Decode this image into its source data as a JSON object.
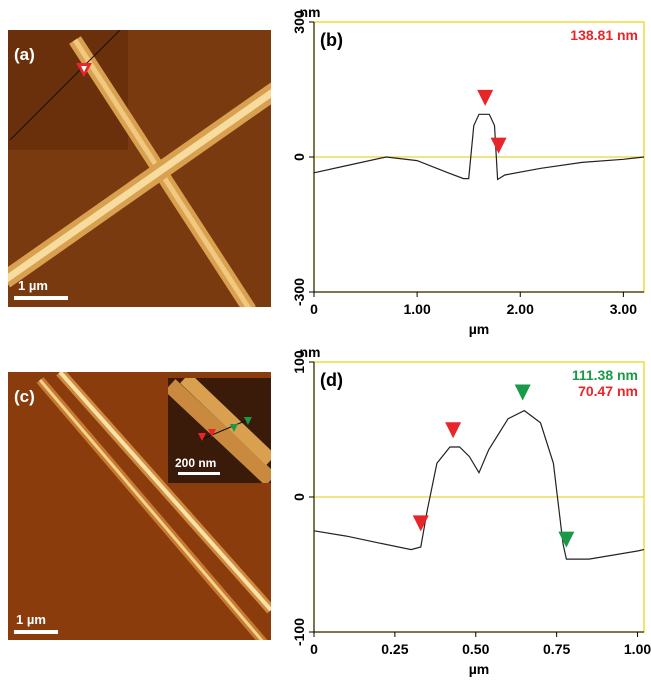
{
  "images": [
    {
      "label": "(a)",
      "scale_bar": "1 µm"
    },
    {
      "label": "(c)",
      "scale_bar": "1 µm",
      "inset_scale_bar": "200 nm"
    }
  ],
  "chart_data": [
    {
      "type": "line",
      "panel_label": "(b)",
      "y_label": "nm",
      "x_label": "µm",
      "annotations": [
        {
          "text": "138.81 nm",
          "color": "#e8262a"
        }
      ],
      "x": [
        0,
        0.3,
        0.7,
        1.0,
        1.3,
        1.45,
        1.5,
        1.55,
        1.6,
        1.7,
        1.75,
        1.78,
        1.85,
        2.2,
        2.6,
        3.0,
        3.2
      ],
      "values": [
        -35,
        -20,
        0,
        -8,
        -35,
        -48,
        -48,
        70,
        95,
        95,
        70,
        -50,
        -40,
        -25,
        -12,
        -5,
        0
      ],
      "color": "#222222",
      "markers": [
        {
          "x": 1.66,
          "y": 118,
          "color": "#e8262a"
        },
        {
          "x": 1.79,
          "y": 12,
          "color": "#e8262a"
        }
      ],
      "xlim": [
        0,
        3.2
      ],
      "ylim": [
        -300,
        300
      ],
      "xticks": [
        0,
        {
          "value": 1,
          "label": "1.00"
        },
        {
          "value": 2,
          "label": "2.00"
        },
        {
          "value": 3,
          "label": "3.00"
        }
      ],
      "yticks": [
        -300,
        0,
        300
      ],
      "zero_line": true
    },
    {
      "type": "line",
      "panel_label": "(d)",
      "y_label": "nm",
      "x_label": "µm",
      "annotations": [
        {
          "text": "111.38 nm",
          "color": "#1a9a48"
        },
        {
          "text": "70.47 nm",
          "color": "#e8262a"
        }
      ],
      "x": [
        0,
        0.1,
        0.2,
        0.3,
        0.33,
        0.35,
        0.38,
        0.42,
        0.45,
        0.48,
        0.51,
        0.54,
        0.6,
        0.65,
        0.7,
        0.74,
        0.77,
        0.78,
        0.85,
        1.0,
        1.02
      ],
      "values": [
        -25,
        -29,
        -34,
        -39,
        -37,
        -10,
        25,
        37,
        37,
        30,
        18,
        35,
        58,
        64,
        55,
        25,
        -35,
        -46,
        -46,
        -40,
        -39
      ],
      "color": "#222222",
      "markers": [
        {
          "x": 0.33,
          "y": -24,
          "color": "#e8262a"
        },
        {
          "x": 0.43,
          "y": 45,
          "color": "#e8262a"
        },
        {
          "x": 0.645,
          "y": 73,
          "color": "#1a9a48"
        },
        {
          "x": 0.78,
          "y": -36,
          "color": "#1a9a48"
        }
      ],
      "xlim": [
        0,
        1.02
      ],
      "ylim": [
        -100,
        100
      ],
      "xticks": [
        0,
        0.25,
        {
          "value": 0.5,
          "label": "0.50"
        },
        0.75,
        {
          "value": 1,
          "label": "1.00"
        }
      ],
      "yticks": [
        -100,
        0,
        100
      ],
      "zero_line": true
    }
  ]
}
